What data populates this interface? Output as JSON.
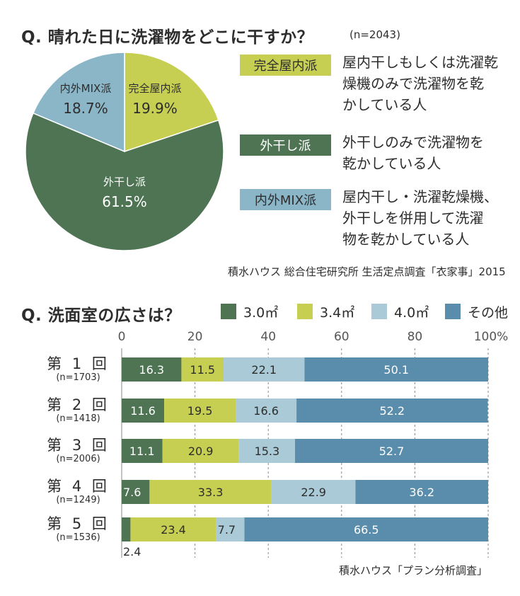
{
  "pie_section": {
    "question": "Q. 晴れた日に洗濯物をどこに干すか？",
    "sample": "(n=2043)",
    "legend": [
      {
        "label": "完全屋内派",
        "color": "#c7cf53",
        "text_color": "#2d2d2d",
        "desc_lines": [
          "屋内干しもしくは洗濯乾",
          "燥機のみで洗濯物を乾",
          "かしている人"
        ]
      },
      {
        "label": "外干し派",
        "color": "#4e7453",
        "text_color": "#ffffff",
        "desc_lines": [
          "外干しのみで洗濯物を",
          "乾かしている人"
        ]
      },
      {
        "label": "内外MIX派",
        "color": "#8ab6c8",
        "text_color": "#2d2d2d",
        "desc_lines": [
          "屋内干し・洗濯乾燥機、",
          "外干しを併用して洗濯",
          "物を乾かしている人"
        ]
      }
    ],
    "source": "積水ハウス 総合住宅研究所 生活定点調査「衣家事」2015"
  },
  "bar_section": {
    "question": "Q. 洗面室の広さは？",
    "source": "積水ハウス「プラン分析調査」"
  },
  "chart_data": [
    {
      "type": "pie",
      "labels": [
        "完全屋内派",
        "外干し派",
        "内外MIX派"
      ],
      "values": [
        19.9,
        61.5,
        18.7
      ],
      "value_labels": [
        "19.9%",
        "61.5%",
        "18.7%"
      ],
      "colors": [
        "#c7cf53",
        "#4e7453",
        "#8ab6c8"
      ],
      "label_colors": [
        "#2d2d2d",
        "#ffffff",
        "#2d2d2d"
      ]
    },
    {
      "type": "bar",
      "orientation": "horizontal",
      "stacked": true,
      "categories": [
        "第 1 回",
        "第 2 回",
        "第 3 回",
        "第 4 回",
        "第 5 回"
      ],
      "category_n": [
        "(n=1703)",
        "(n=1418)",
        "(n=2006)",
        "(n=1249)",
        "(n=1536)"
      ],
      "series": [
        {
          "name": "3.0㎡",
          "color": "#4e7453",
          "label_color": "#ffffff",
          "values": [
            16.3,
            11.6,
            11.1,
            7.6,
            2.4
          ],
          "labels": [
            "16.3",
            "11.6",
            "11.1",
            "7.6",
            "2.4"
          ]
        },
        {
          "name": "3.4㎡",
          "color": "#c7cf53",
          "label_color": "#2d2d2d",
          "values": [
            11.5,
            19.5,
            20.9,
            33.3,
            23.4
          ],
          "labels": [
            "11.5",
            "19.5",
            "20.9",
            "33.3",
            "23.4"
          ]
        },
        {
          "name": "4.0㎡",
          "color": "#a9cad6",
          "label_color": "#2d2d2d",
          "values": [
            22.1,
            16.6,
            15.3,
            22.9,
            7.7
          ],
          "labels": [
            "22.1",
            "16.6",
            "15.3",
            "22.9",
            "7.7"
          ]
        },
        {
          "name": "その他",
          "color": "#5a8cac",
          "label_color": "#ffffff",
          "values": [
            50.1,
            52.2,
            52.7,
            36.2,
            66.5
          ],
          "labels": [
            "50.1",
            "52.2",
            "52.7",
            "36.2",
            "66.5"
          ]
        }
      ],
      "xticks": [
        "0",
        "20",
        "40",
        "60",
        "80",
        "100%"
      ],
      "xlim": [
        0,
        100
      ],
      "grid": true
    }
  ]
}
